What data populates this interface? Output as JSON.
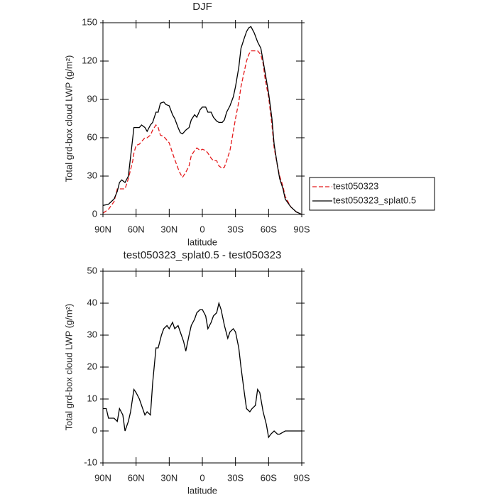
{
  "chart_data": [
    {
      "type": "line",
      "title": "DJF",
      "xlabel": "latitude",
      "ylabel": "Total grd-box cloud LWP (g/m²)",
      "x": [
        90,
        85,
        80,
        77,
        75,
        73,
        70,
        67,
        65,
        63,
        62,
        60,
        57,
        55,
        52,
        50,
        47,
        45,
        42,
        40,
        38,
        35,
        33,
        30,
        27,
        25,
        22,
        20,
        18,
        15,
        12,
        10,
        7,
        5,
        2,
        0,
        -3,
        -5,
        -8,
        -10,
        -13,
        -15,
        -18,
        -20,
        -22,
        -25,
        -28,
        -30,
        -33,
        -35,
        -38,
        -40,
        -42,
        -44,
        -47,
        -50,
        -53,
        -55,
        -57,
        -60,
        -63,
        -65,
        -68,
        -70,
        -73,
        -75,
        -80,
        -85,
        -90
      ],
      "series": [
        {
          "name": "test050323",
          "color": "#e41a1c",
          "dash": true,
          "values": [
            1,
            4,
            10,
            20,
            20,
            20,
            20,
            28,
            35,
            42,
            48,
            54,
            55,
            57,
            60,
            60,
            62,
            66,
            70,
            68,
            62,
            61,
            59,
            56,
            48,
            43,
            36,
            32,
            29,
            33,
            38,
            46,
            50,
            52,
            50,
            51,
            50,
            48,
            44,
            42,
            42,
            38,
            36,
            37,
            42,
            50,
            65,
            75,
            88,
            100,
            112,
            120,
            125,
            128,
            128,
            128,
            125,
            118,
            105,
            92,
            70,
            52,
            38,
            30,
            22,
            14,
            6,
            2,
            0
          ]
        },
        {
          "name": "test050323_splat0.5",
          "color": "#000000",
          "dash": false,
          "values": [
            7,
            8,
            12,
            18,
            25,
            27,
            25,
            30,
            45,
            60,
            68,
            68,
            68,
            70,
            68,
            65,
            70,
            72,
            80,
            80,
            87,
            88,
            86,
            85,
            78,
            75,
            68,
            64,
            63,
            66,
            68,
            74,
            78,
            76,
            82,
            84,
            84,
            80,
            80,
            76,
            73,
            72,
            72,
            74,
            80,
            85,
            92,
            100,
            115,
            130,
            138,
            143,
            146,
            147,
            142,
            135,
            130,
            120,
            110,
            95,
            75,
            55,
            38,
            28,
            20,
            12,
            6,
            2,
            0
          ]
        }
      ],
      "xlim": [
        90,
        -90
      ],
      "xticks": [
        {
          "value": 90,
          "label": "90N"
        },
        {
          "value": 60,
          "label": "60N"
        },
        {
          "value": 30,
          "label": "30N"
        },
        0,
        {
          "value": -30,
          "label": "30S"
        },
        {
          "value": -60,
          "label": "60S"
        },
        {
          "value": -90,
          "label": "90S"
        }
      ],
      "ylim": [
        0,
        150
      ],
      "yticks": [
        0,
        30,
        60,
        90,
        120,
        150
      ],
      "legend": "right"
    },
    {
      "type": "line",
      "title": "test050323_splat0.5 - test050323",
      "xlabel": "latitude",
      "ylabel": "Total grd-box cloud LWP (g/m²)",
      "x": [
        90,
        87,
        85,
        80,
        77,
        75,
        72,
        70,
        67,
        65,
        62,
        60,
        57,
        55,
        52,
        50,
        47,
        45,
        42,
        40,
        37,
        35,
        32,
        30,
        27,
        25,
        22,
        20,
        17,
        15,
        12,
        10,
        7,
        5,
        2,
        0,
        -3,
        -5,
        -8,
        -10,
        -13,
        -15,
        -17,
        -20,
        -23,
        -25,
        -28,
        -30,
        -33,
        -35,
        -38,
        -40,
        -43,
        -45,
        -48,
        -50,
        -52,
        -55,
        -58,
        -60,
        -62,
        -65,
        -68,
        -70,
        -75,
        -80,
        -90
      ],
      "values": [
        7,
        7,
        4,
        4,
        3,
        7,
        5,
        0,
        3,
        6,
        13,
        12,
        10,
        8,
        5,
        6,
        5,
        15,
        26,
        26,
        30,
        32,
        33,
        32,
        34,
        32,
        33,
        31,
        28,
        25,
        30,
        33,
        35,
        37,
        38,
        38,
        36,
        32,
        34,
        36,
        37,
        40,
        38,
        33,
        29,
        31,
        32,
        31,
        26,
        20,
        12,
        7,
        6,
        7,
        8,
        13,
        12,
        6,
        2,
        -2,
        -1,
        0,
        -1,
        -1,
        0,
        0,
        0
      ],
      "color": "#000000",
      "xlim": [
        90,
        -90
      ],
      "xticks": [
        {
          "value": 90,
          "label": "90N"
        },
        {
          "value": 60,
          "label": "60N"
        },
        {
          "value": 30,
          "label": "30N"
        },
        0,
        {
          "value": -30,
          "label": "30S"
        },
        {
          "value": -60,
          "label": "60S"
        },
        {
          "value": -90,
          "label": "90S"
        }
      ],
      "ylim": [
        -10,
        50
      ],
      "yticks": [
        -10,
        0,
        10,
        20,
        30,
        40,
        50
      ]
    }
  ]
}
